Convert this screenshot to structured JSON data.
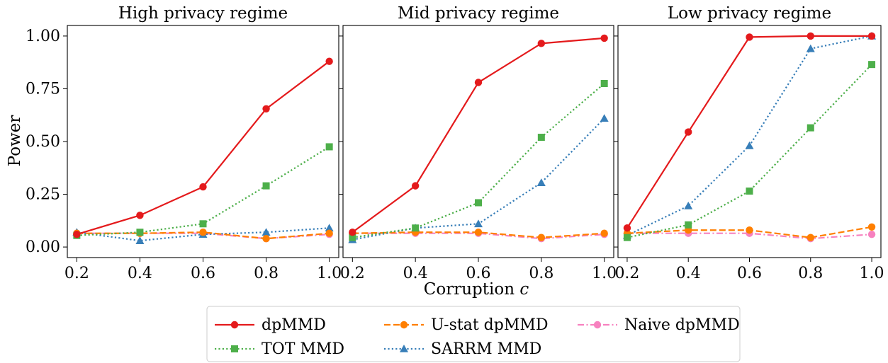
{
  "chart_data": {
    "type": "line",
    "x": [
      0.2,
      0.4,
      0.6,
      0.8,
      1.0
    ],
    "x_tick_labels": [
      "0.2",
      "0.4",
      "0.6",
      "0.8",
      "1.0"
    ],
    "y_tick_labels": [
      "0.00",
      "0.25",
      "0.50",
      "0.75",
      "1.00"
    ],
    "y_ticks": [
      0,
      0.25,
      0.5,
      0.75,
      1.0
    ],
    "xlim": [
      0.17,
      1.03
    ],
    "ylim": [
      -0.05,
      1.05
    ],
    "ylabel": "Power",
    "xlabel": "Corruption c",
    "grid": false,
    "legend_placement": "bottom-center",
    "styles": [
      {
        "color": "#e41a1c",
        "dash": "solid",
        "marker": "circle"
      },
      {
        "color": "#4daf4a",
        "dash": "dotted",
        "marker": "square"
      },
      {
        "color": "#ff7f00",
        "dash": "dashed",
        "marker": "circle"
      },
      {
        "color": "#377eb8",
        "dash": "dotted",
        "marker": "triangle"
      },
      {
        "color": "#f781bf",
        "dash": "dashdot",
        "marker": "circle"
      }
    ],
    "legend": [
      "dpMMD",
      "TOT MMD",
      "U-stat dpMMD",
      "SARRM MMD",
      "Naive dpMMD"
    ],
    "panels": [
      {
        "title": "High privacy regime",
        "series": [
          {
            "name": "dpMMD",
            "values": [
              0.06,
              0.15,
              0.285,
              0.655,
              0.88
            ]
          },
          {
            "name": "TOT MMD",
            "values": [
              0.055,
              0.07,
              0.11,
              0.29,
              0.475
            ]
          },
          {
            "name": "U-stat dpMMD",
            "values": [
              0.065,
              0.065,
              0.07,
              0.04,
              0.065
            ]
          },
          {
            "name": "SARRM MMD",
            "values": [
              0.07,
              0.03,
              0.06,
              0.07,
              0.09
            ]
          },
          {
            "name": "Naive dpMMD",
            "values": [
              0.065,
              0.065,
              0.065,
              0.04,
              0.06
            ]
          }
        ]
      },
      {
        "title": "Mid privacy regime",
        "series": [
          {
            "name": "dpMMD",
            "values": [
              0.07,
              0.29,
              0.78,
              0.965,
              0.99
            ]
          },
          {
            "name": "TOT MMD",
            "values": [
              0.045,
              0.09,
              0.21,
              0.52,
              0.775
            ]
          },
          {
            "name": "U-stat dpMMD",
            "values": [
              0.065,
              0.07,
              0.07,
              0.045,
              0.065
            ]
          },
          {
            "name": "SARRM MMD",
            "values": [
              0.035,
              0.09,
              0.11,
              0.305,
              0.61
            ]
          },
          {
            "name": "Naive dpMMD",
            "values": [
              0.065,
              0.065,
              0.065,
              0.04,
              0.06
            ]
          }
        ]
      },
      {
        "title": "Low privacy regime",
        "series": [
          {
            "name": "dpMMD",
            "values": [
              0.09,
              0.545,
              0.995,
              1.0,
              1.0
            ]
          },
          {
            "name": "TOT MMD",
            "values": [
              0.045,
              0.105,
              0.265,
              0.565,
              0.865
            ]
          },
          {
            "name": "U-stat dpMMD",
            "values": [
              0.065,
              0.08,
              0.08,
              0.045,
              0.095
            ]
          },
          {
            "name": "SARRM MMD",
            "values": [
              0.055,
              0.195,
              0.48,
              0.94,
              1.0
            ]
          },
          {
            "name": "Naive dpMMD",
            "values": [
              0.065,
              0.065,
              0.065,
              0.04,
              0.06
            ]
          }
        ]
      }
    ]
  }
}
